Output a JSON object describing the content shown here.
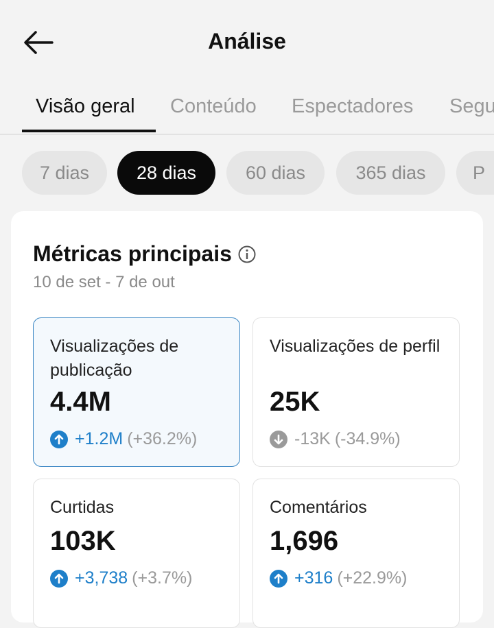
{
  "header": {
    "title": "Análise",
    "back_icon": "arrow-left-icon"
  },
  "tabs": [
    {
      "label": "Visão geral",
      "active": true
    },
    {
      "label": "Conteúdo",
      "active": false
    },
    {
      "label": "Espectadores",
      "active": false
    },
    {
      "label": "Segu",
      "active": false
    }
  ],
  "ranges": [
    {
      "label": "7 dias",
      "active": false
    },
    {
      "label": "28 dias",
      "active": true
    },
    {
      "label": "60 dias",
      "active": false
    },
    {
      "label": "365 dias",
      "active": false
    },
    {
      "label": "P",
      "active": false
    }
  ],
  "key_metrics": {
    "title": "Métricas principais",
    "info_icon": "info-icon",
    "date_range": "10 de set - 7 de out",
    "cards": [
      {
        "label": "Visualizações de publicação",
        "value": "4.4M",
        "change": "+1.2M",
        "change_pct": "(+36.2%)",
        "trend": "up",
        "selected": true
      },
      {
        "label": "Visualizações de perfil",
        "value": "25K",
        "change": "-13K",
        "change_pct": "(-34.9%)",
        "trend": "down",
        "selected": false
      },
      {
        "label": "Curtidas",
        "value": "103K",
        "change": "+3,738",
        "change_pct": "(+3.7%)",
        "trend": "up",
        "selected": false
      },
      {
        "label": "Comentários",
        "value": "1,696",
        "change": "+316",
        "change_pct": "(+22.9%)",
        "trend": "up",
        "selected": false
      }
    ]
  },
  "colors": {
    "accent_blue": "#1e7fc9",
    "selected_border": "#3b87c4",
    "selected_bg": "#f4f9fd",
    "muted_gray": "#9a9a9a"
  }
}
